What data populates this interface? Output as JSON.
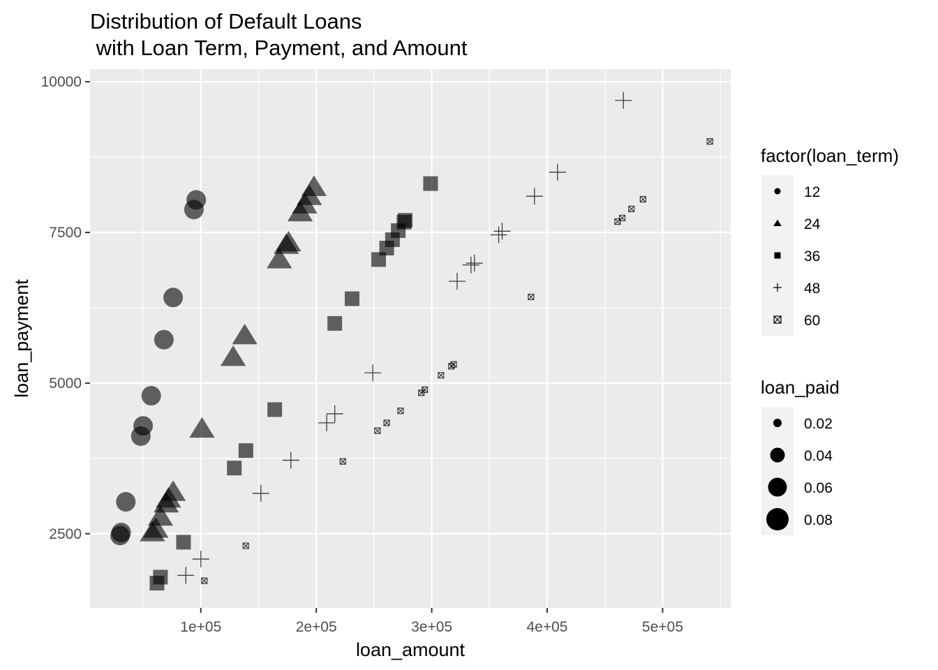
{
  "chart_data": {
    "type": "scatter",
    "title_lines": [
      "Distribution of Default Loans",
      " with Loan Term, Payment, and Amount"
    ],
    "xlabel": "loan_amount",
    "ylabel": "loan_payment",
    "xlim": [
      4000,
      559000
    ],
    "ylim": [
      1270,
      10210
    ],
    "x_ticks": [
      100000,
      200000,
      300000,
      400000,
      500000
    ],
    "x_tick_labels": [
      "1e+05",
      "2e+05",
      "3e+05",
      "4e+05",
      "5e+05"
    ],
    "y_ticks": [
      2500,
      5000,
      7500,
      10000
    ],
    "y_tick_labels": [
      "2500",
      "5000",
      "7500",
      "10000"
    ],
    "grid": true,
    "legend_position": "right",
    "colors": {
      "panel": "#EBEBEB",
      "grid": "#FFFFFF",
      "point": "#000000",
      "tick": "#4D4D4D"
    },
    "legends": {
      "shape": {
        "title": "factor(loan_term)",
        "items": [
          {
            "label": "12",
            "shape": "circle"
          },
          {
            "label": "24",
            "shape": "triangle"
          },
          {
            "label": "36",
            "shape": "square"
          },
          {
            "label": "48",
            "shape": "plus"
          },
          {
            "label": "60",
            "shape": "square-cross"
          }
        ]
      },
      "size": {
        "title": "loan_paid",
        "items": [
          {
            "label": "0.02",
            "value": 0.02
          },
          {
            "label": "0.04",
            "value": 0.04
          },
          {
            "label": "0.06",
            "value": 0.06
          },
          {
            "label": "0.08",
            "value": 0.08
          }
        ]
      }
    },
    "series": [
      {
        "loan_term": 12,
        "shape": "circle",
        "points": [
          {
            "x": 30000,
            "y": 2470,
            "loan_paid": 0.08
          },
          {
            "x": 31000,
            "y": 2520,
            "loan_paid": 0.08
          },
          {
            "x": 35000,
            "y": 3030,
            "loan_paid": 0.08
          },
          {
            "x": 48000,
            "y": 4120,
            "loan_paid": 0.08
          },
          {
            "x": 50000,
            "y": 4290,
            "loan_paid": 0.08
          },
          {
            "x": 57000,
            "y": 4790,
            "loan_paid": 0.08
          },
          {
            "x": 68000,
            "y": 5720,
            "loan_paid": 0.08
          },
          {
            "x": 76000,
            "y": 6420,
            "loan_paid": 0.08
          },
          {
            "x": 94000,
            "y": 7880,
            "loan_paid": 0.08
          },
          {
            "x": 96000,
            "y": 8040,
            "loan_paid": 0.08
          }
        ]
      },
      {
        "loan_term": 24,
        "shape": "triangle",
        "points": [
          {
            "x": 58000,
            "y": 2520,
            "loan_paid": 0.06
          },
          {
            "x": 61000,
            "y": 2580,
            "loan_paid": 0.06
          },
          {
            "x": 65000,
            "y": 2780,
            "loan_paid": 0.06
          },
          {
            "x": 70000,
            "y": 3000,
            "loan_paid": 0.06
          },
          {
            "x": 72000,
            "y": 3080,
            "loan_paid": 0.06
          },
          {
            "x": 76000,
            "y": 3190,
            "loan_paid": 0.06
          },
          {
            "x": 101000,
            "y": 4240,
            "loan_paid": 0.06
          },
          {
            "x": 128000,
            "y": 5430,
            "loan_paid": 0.06
          },
          {
            "x": 138000,
            "y": 5790,
            "loan_paid": 0.06
          },
          {
            "x": 168000,
            "y": 7050,
            "loan_paid": 0.06
          },
          {
            "x": 174000,
            "y": 7290,
            "loan_paid": 0.06
          },
          {
            "x": 176000,
            "y": 7330,
            "loan_paid": 0.06
          },
          {
            "x": 186000,
            "y": 7830,
            "loan_paid": 0.06
          },
          {
            "x": 190000,
            "y": 7960,
            "loan_paid": 0.06
          },
          {
            "x": 194000,
            "y": 8100,
            "loan_paid": 0.06
          },
          {
            "x": 198000,
            "y": 8250,
            "loan_paid": 0.06
          }
        ]
      },
      {
        "loan_term": 36,
        "shape": "square",
        "points": [
          {
            "x": 62000,
            "y": 1680,
            "loan_paid": 0.04
          },
          {
            "x": 65000,
            "y": 1780,
            "loan_paid": 0.04
          },
          {
            "x": 85000,
            "y": 2360,
            "loan_paid": 0.04
          },
          {
            "x": 129000,
            "y": 3590,
            "loan_paid": 0.04
          },
          {
            "x": 139000,
            "y": 3880,
            "loan_paid": 0.04
          },
          {
            "x": 164000,
            "y": 4560,
            "loan_paid": 0.04
          },
          {
            "x": 216000,
            "y": 5990,
            "loan_paid": 0.04
          },
          {
            "x": 231000,
            "y": 6400,
            "loan_paid": 0.04
          },
          {
            "x": 254000,
            "y": 7050,
            "loan_paid": 0.04
          },
          {
            "x": 261000,
            "y": 7240,
            "loan_paid": 0.04
          },
          {
            "x": 266000,
            "y": 7380,
            "loan_paid": 0.04
          },
          {
            "x": 271000,
            "y": 7530,
            "loan_paid": 0.04
          },
          {
            "x": 276000,
            "y": 7670,
            "loan_paid": 0.04
          },
          {
            "x": 277000,
            "y": 7700,
            "loan_paid": 0.04
          },
          {
            "x": 299000,
            "y": 8310,
            "loan_paid": 0.04
          }
        ]
      },
      {
        "loan_term": 48,
        "shape": "plus",
        "points": [
          {
            "x": 87000,
            "y": 1810,
            "loan_paid": 0.02
          },
          {
            "x": 100000,
            "y": 2080,
            "loan_paid": 0.02
          },
          {
            "x": 152000,
            "y": 3170,
            "loan_paid": 0.02
          },
          {
            "x": 178000,
            "y": 3720,
            "loan_paid": 0.02
          },
          {
            "x": 209000,
            "y": 4340,
            "loan_paid": 0.02
          },
          {
            "x": 216000,
            "y": 4490,
            "loan_paid": 0.02
          },
          {
            "x": 249000,
            "y": 5170,
            "loan_paid": 0.02
          },
          {
            "x": 322000,
            "y": 6690,
            "loan_paid": 0.02
          },
          {
            "x": 334000,
            "y": 6960,
            "loan_paid": 0.02
          },
          {
            "x": 337000,
            "y": 6990,
            "loan_paid": 0.02
          },
          {
            "x": 358000,
            "y": 7460,
            "loan_paid": 0.02
          },
          {
            "x": 361000,
            "y": 7520,
            "loan_paid": 0.02
          },
          {
            "x": 389000,
            "y": 8100,
            "loan_paid": 0.02
          },
          {
            "x": 409000,
            "y": 8500,
            "loan_paid": 0.02
          },
          {
            "x": 466000,
            "y": 9690,
            "loan_paid": 0.02
          }
        ]
      },
      {
        "loan_term": 60,
        "shape": "square-cross",
        "points": [
          {
            "x": 103000,
            "y": 1720,
            "loan_paid": 0.01
          },
          {
            "x": 139000,
            "y": 2300,
            "loan_paid": 0.01
          },
          {
            "x": 223000,
            "y": 3700,
            "loan_paid": 0.01
          },
          {
            "x": 253000,
            "y": 4210,
            "loan_paid": 0.01
          },
          {
            "x": 261000,
            "y": 4340,
            "loan_paid": 0.01
          },
          {
            "x": 273000,
            "y": 4540,
            "loan_paid": 0.01
          },
          {
            "x": 291000,
            "y": 4840,
            "loan_paid": 0.01
          },
          {
            "x": 294000,
            "y": 4890,
            "loan_paid": 0.01
          },
          {
            "x": 308000,
            "y": 5130,
            "loan_paid": 0.01
          },
          {
            "x": 317000,
            "y": 5280,
            "loan_paid": 0.01
          },
          {
            "x": 319000,
            "y": 5310,
            "loan_paid": 0.01
          },
          {
            "x": 386000,
            "y": 6430,
            "loan_paid": 0.01
          },
          {
            "x": 461000,
            "y": 7680,
            "loan_paid": 0.01
          },
          {
            "x": 465000,
            "y": 7740,
            "loan_paid": 0.01
          },
          {
            "x": 473000,
            "y": 7890,
            "loan_paid": 0.01
          },
          {
            "x": 483000,
            "y": 8050,
            "loan_paid": 0.01
          },
          {
            "x": 541000,
            "y": 9010,
            "loan_paid": 0.01
          }
        ]
      }
    ]
  }
}
